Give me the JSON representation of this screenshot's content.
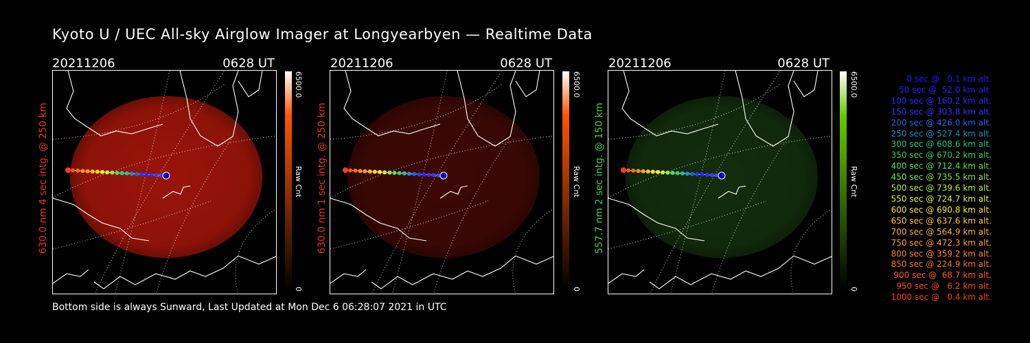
{
  "title": "Kyoto U / UEC All-sky Airglow Imager at Longyearbyen — Realtime Data",
  "footer": "Bottom side is always Sunward, Last Updated at Mon Dec  6 06:28:07 2021 in UTC",
  "panels": [
    {
      "date": "20211206",
      "time": "0628 UT",
      "side_label": "630.0 nm 4 sec intg. @ 250 km",
      "label_color": "#e8321e",
      "glow_color": "#c41a0c",
      "glow_opacity": 0.78,
      "cbar_top": "#ffffff",
      "cbar_mid": "#ff5500",
      "cbar_bottom": "#000000",
      "cbar_max": "6500.0",
      "cbar_unit": "Raw Cnt",
      "cbar_min": "0"
    },
    {
      "date": "20211206",
      "time": "0628 UT",
      "side_label": "630.0 nm 1 sec intg. @ 250 km",
      "label_color": "#e8321e",
      "glow_color": "#6e0f08",
      "glow_opacity": 0.55,
      "cbar_top": "#ffffff",
      "cbar_mid": "#ff5500",
      "cbar_bottom": "#000000",
      "cbar_max": "6500.0",
      "cbar_unit": "Raw Cnt",
      "cbar_min": "0"
    },
    {
      "date": "20211206",
      "time": "0628 UT",
      "side_label": "557.7 nm 2 sec intg. @ 150 km",
      "label_color": "#3ad23a",
      "glow_color": "#1e4a14",
      "glow_opacity": 0.6,
      "cbar_top": "#ffffff",
      "cbar_mid": "#66cc00",
      "cbar_bottom": "#000000",
      "cbar_max": "6500.0",
      "cbar_unit": "Raw Cnt",
      "cbar_min": "0"
    }
  ],
  "trajectory_colors": [
    "#ff3a1e",
    "#ff4e1e",
    "#ff6a1e",
    "#ff8c22",
    "#ffa028",
    "#ffc030",
    "#ffd838",
    "#f0f040",
    "#c8f040",
    "#90e850",
    "#50e060",
    "#30d070",
    "#30b8a0",
    "#2090d0",
    "#2060e8",
    "#1c3cff",
    "#2828ff",
    "#3030ff",
    "#3838ff",
    "#4040ff",
    "#0000c0"
  ],
  "legend": [
    {
      "sec": "   0 sec @",
      "alt": "   0.1 km alt.",
      "color": "#1c1cff"
    },
    {
      "sec": "  50 sec @",
      "alt": "  52.0 km alt.",
      "color": "#2222ff"
    },
    {
      "sec": " 100 sec @",
      "alt": " 160.2 km alt.",
      "color": "#2a2aff"
    },
    {
      "sec": " 150 sec @",
      "alt": " 303.8 km alt.",
      "color": "#3030ff"
    },
    {
      "sec": " 200 sec @",
      "alt": " 426.0 km alt.",
      "color": "#2a60e8"
    },
    {
      "sec": " 250 sec @",
      "alt": " 527.4 km alt.",
      "color": "#2090c0"
    },
    {
      "sec": " 300 sec @",
      "alt": " 608.6 km alt.",
      "color": "#20c080"
    },
    {
      "sec": " 350 sec @",
      "alt": " 670.2 km alt.",
      "color": "#30d060"
    },
    {
      "sec": " 400 sec @",
      "alt": " 712.4 km alt.",
      "color": "#50e050"
    },
    {
      "sec": " 450 sec @",
      "alt": " 735.5 km alt.",
      "color": "#80e840"
    },
    {
      "sec": " 500 sec @",
      "alt": " 739.6 km alt.",
      "color": "#b0f040"
    },
    {
      "sec": " 550 sec @",
      "alt": " 724.7 km alt.",
      "color": "#e0f040"
    },
    {
      "sec": " 600 sec @",
      "alt": " 690.8 km alt.",
      "color": "#ffe040"
    },
    {
      "sec": " 650 sec @",
      "alt": " 637.6 km alt.",
      "color": "#ffc838"
    },
    {
      "sec": " 700 sec @",
      "alt": " 564.9 km alt.",
      "color": "#ffb030"
    },
    {
      "sec": " 750 sec @",
      "alt": " 472.3 km alt.",
      "color": "#ff9a2a"
    },
    {
      "sec": " 800 sec @",
      "alt": " 359.2 km alt.",
      "color": "#ff8424"
    },
    {
      "sec": " 850 sec @",
      "alt": " 224.9 km alt.",
      "color": "#ff6e20"
    },
    {
      "sec": " 900 sec @",
      "alt": "  68.7 km alt.",
      "color": "#ff5a1e"
    },
    {
      "sec": " 950 sec @",
      "alt": "   6.2 km alt.",
      "color": "#ff481c"
    },
    {
      "sec": "1000 sec @",
      "alt": "   0.4 km alt.",
      "color": "#ff3a1a"
    }
  ]
}
